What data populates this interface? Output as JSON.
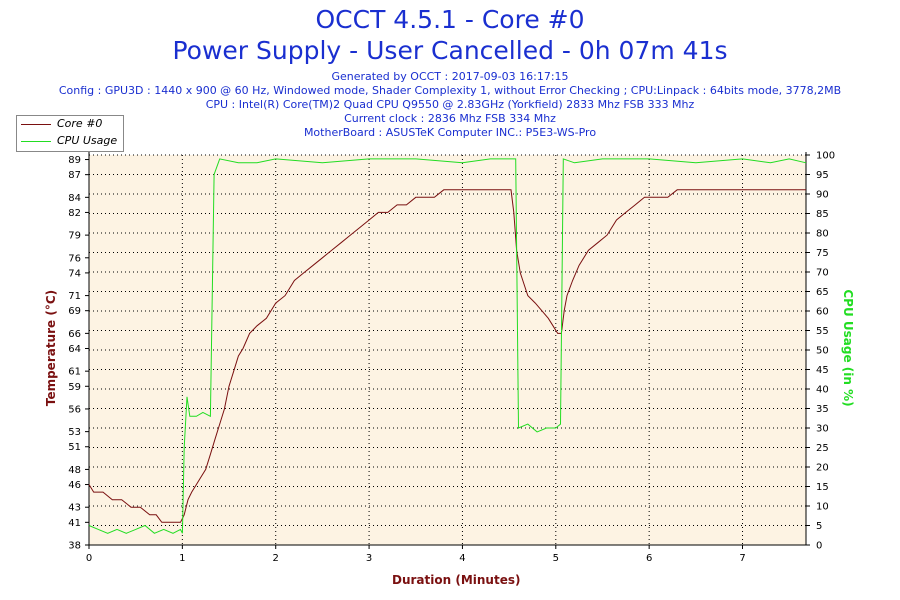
{
  "header": {
    "title_line1": "OCCT 4.5.1 - Core #0",
    "title_line2": "Power Supply - User Cancelled - 0h 07m 41s",
    "generated": "Generated by OCCT : 2017-09-03 16:17:15",
    "config": "Config : GPU3D : 1440 x 900 @ 60 Hz, Windowed mode, Shader Complexity 1, without Error Checking ; CPU:Linpack : 64bits mode, 3778,2MB",
    "cpu": "CPU : Intel(R) Core(TM)2 Quad CPU Q9550 @ 2.83GHz (Yorkfield) 2833 Mhz FSB 333 Mhz",
    "clock": "Current clock : 2836 Mhz FSB 334 Mhz",
    "motherboard": "MotherBoard : ASUSTeK Computer INC.: P5E3-WS-Pro"
  },
  "colors": {
    "title": "#1a2fd0",
    "temperature": "#7a1010",
    "cpu_usage": "#22dd22",
    "plot_bg": "#fdf3e3",
    "axis": "#000000"
  },
  "chart_data": {
    "type": "line",
    "xlabel": "Duration (Minutes)",
    "ylabel_left": "Temperature (°C)",
    "ylabel_right": "CPU Usage (in %)",
    "xlim": [
      0,
      7.68
    ],
    "ylim_left": [
      38,
      89.6
    ],
    "ylim_right": [
      0,
      100
    ],
    "x_ticks": [
      0,
      1,
      2,
      3,
      4,
      5,
      6,
      7
    ],
    "y_left_ticks": [
      38,
      41,
      43,
      46,
      48,
      51,
      53,
      56,
      59,
      61,
      64,
      66,
      69,
      71,
      74,
      76,
      79,
      82,
      84,
      87,
      89
    ],
    "y_right_ticks": [
      0,
      5,
      10,
      15,
      20,
      25,
      30,
      35,
      40,
      45,
      50,
      55,
      60,
      65,
      70,
      75,
      80,
      85,
      90,
      95,
      100
    ],
    "grid": true,
    "legend_position": "top-left",
    "series": [
      {
        "name": "Core #0",
        "axis": "left",
        "color": "#7a1010",
        "points": [
          [
            0,
            46
          ],
          [
            0.05,
            45
          ],
          [
            0.15,
            45
          ],
          [
            0.25,
            44
          ],
          [
            0.35,
            44
          ],
          [
            0.45,
            43
          ],
          [
            0.55,
            43
          ],
          [
            0.65,
            42
          ],
          [
            0.72,
            42
          ],
          [
            0.78,
            41
          ],
          [
            0.85,
            41
          ],
          [
            0.92,
            41
          ],
          [
            0.98,
            41
          ],
          [
            1.02,
            42
          ],
          [
            1.06,
            44
          ],
          [
            1.1,
            45
          ],
          [
            1.15,
            46
          ],
          [
            1.2,
            47
          ],
          [
            1.25,
            48
          ],
          [
            1.3,
            50
          ],
          [
            1.35,
            52
          ],
          [
            1.4,
            54
          ],
          [
            1.45,
            56
          ],
          [
            1.5,
            59
          ],
          [
            1.55,
            61
          ],
          [
            1.6,
            63
          ],
          [
            1.65,
            64
          ],
          [
            1.72,
            66
          ],
          [
            1.8,
            67
          ],
          [
            1.9,
            68
          ],
          [
            2.0,
            70
          ],
          [
            2.1,
            71
          ],
          [
            2.2,
            73
          ],
          [
            2.3,
            74
          ],
          [
            2.4,
            75
          ],
          [
            2.5,
            76
          ],
          [
            2.6,
            77
          ],
          [
            2.7,
            78
          ],
          [
            2.8,
            79
          ],
          [
            2.9,
            80
          ],
          [
            3.0,
            81
          ],
          [
            3.1,
            82
          ],
          [
            3.2,
            82
          ],
          [
            3.3,
            83
          ],
          [
            3.4,
            83
          ],
          [
            3.5,
            84
          ],
          [
            3.6,
            84
          ],
          [
            3.7,
            84
          ],
          [
            3.8,
            85
          ],
          [
            3.9,
            85
          ],
          [
            4.0,
            85
          ],
          [
            4.2,
            85
          ],
          [
            4.4,
            85
          ],
          [
            4.52,
            85
          ],
          [
            4.55,
            82
          ],
          [
            4.58,
            77
          ],
          [
            4.62,
            74
          ],
          [
            4.7,
            71
          ],
          [
            4.78,
            70
          ],
          [
            4.85,
            69
          ],
          [
            4.92,
            68
          ],
          [
            4.97,
            67
          ],
          [
            5.02,
            66
          ],
          [
            5.06,
            66
          ],
          [
            5.09,
            69
          ],
          [
            5.12,
            71
          ],
          [
            5.18,
            73
          ],
          [
            5.25,
            75
          ],
          [
            5.35,
            77
          ],
          [
            5.45,
            78
          ],
          [
            5.55,
            79
          ],
          [
            5.65,
            81
          ],
          [
            5.75,
            82
          ],
          [
            5.85,
            83
          ],
          [
            5.95,
            84
          ],
          [
            6.05,
            84
          ],
          [
            6.2,
            84
          ],
          [
            6.3,
            85
          ],
          [
            6.5,
            85
          ],
          [
            6.8,
            85
          ],
          [
            7.0,
            85
          ],
          [
            7.2,
            85
          ],
          [
            7.4,
            85
          ],
          [
            7.68,
            85
          ]
        ]
      },
      {
        "name": "CPU Usage",
        "axis": "right",
        "color": "#22dd22",
        "points": [
          [
            0,
            5
          ],
          [
            0.1,
            4
          ],
          [
            0.2,
            3
          ],
          [
            0.3,
            4
          ],
          [
            0.4,
            3
          ],
          [
            0.5,
            4
          ],
          [
            0.6,
            5
          ],
          [
            0.7,
            3
          ],
          [
            0.8,
            4
          ],
          [
            0.9,
            3
          ],
          [
            0.98,
            4
          ],
          [
            1.0,
            3
          ],
          [
            1.02,
            25
          ],
          [
            1.05,
            38
          ],
          [
            1.08,
            33
          ],
          [
            1.15,
            33
          ],
          [
            1.22,
            34
          ],
          [
            1.3,
            33
          ],
          [
            1.34,
            95
          ],
          [
            1.4,
            99
          ],
          [
            1.6,
            98
          ],
          [
            1.8,
            98
          ],
          [
            2.0,
            99
          ],
          [
            2.5,
            98
          ],
          [
            3.0,
            99
          ],
          [
            3.5,
            99
          ],
          [
            4.0,
            98
          ],
          [
            4.3,
            99
          ],
          [
            4.57,
            99
          ],
          [
            4.6,
            30
          ],
          [
            4.7,
            31
          ],
          [
            4.8,
            29
          ],
          [
            4.9,
            30
          ],
          [
            5.0,
            30
          ],
          [
            5.05,
            31
          ],
          [
            5.08,
            99
          ],
          [
            5.2,
            98
          ],
          [
            5.5,
            99
          ],
          [
            6.0,
            99
          ],
          [
            6.5,
            98
          ],
          [
            7.0,
            99
          ],
          [
            7.3,
            98
          ],
          [
            7.5,
            99
          ],
          [
            7.68,
            98
          ]
        ]
      }
    ]
  }
}
